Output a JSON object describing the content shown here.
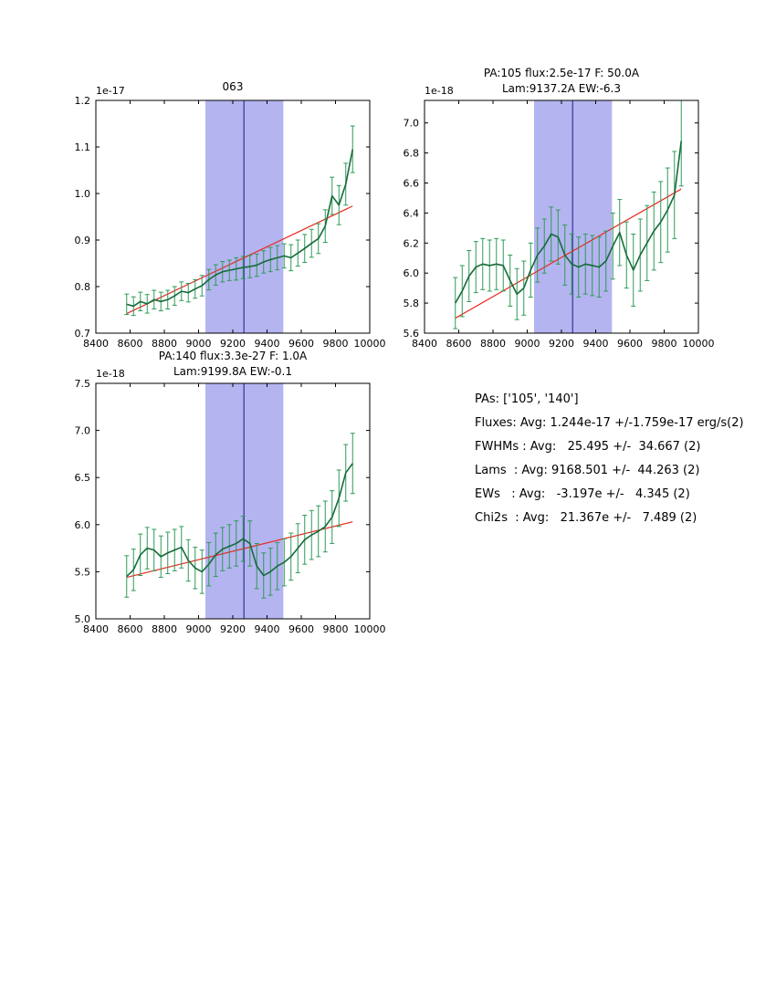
{
  "colors": {
    "series": "#156b38",
    "error": "#2e9b57",
    "fit": "#e8291f",
    "band": "#b4b4f0",
    "center": "#1a1a8c",
    "axis": "#000000",
    "background": "#ffffff"
  },
  "stats": {
    "lines": [
      "PAs: ['105', '140']",
      "Fluxes: Avg: 1.244e-17 +/-1.759e-17 erg/s(2)",
      "FWHMs : Avg:   25.495 +/-  34.667 (2)",
      "Lams  : Avg: 9168.501 +/-  44.263 (2)",
      "EWs   : Avg:   -3.197e +/-   4.345 (2)",
      "Chi2s  : Avg:   21.367e +/-   7.489 (2)"
    ]
  },
  "chart_data": [
    {
      "type": "line",
      "title_lines": [
        "063"
      ],
      "offset_label": "1e-17",
      "xlim": [
        8400,
        10000
      ],
      "ylim": [
        0.7,
        1.2
      ],
      "xticks": [
        8400,
        8600,
        8800,
        9000,
        9200,
        9400,
        9600,
        9800,
        10000
      ],
      "xtick_labels": [
        "8400",
        "8600",
        "8800",
        "9000",
        "9200",
        "9400",
        "9600",
        "9800",
        "10000"
      ],
      "yticks": [
        0.7,
        0.8,
        0.9,
        1.0,
        1.1,
        1.2
      ],
      "ytick_labels": [
        "0.7",
        "0.8",
        "0.9",
        "1.0",
        "1.1",
        "1.2"
      ],
      "band": [
        9040,
        9495
      ],
      "center_line": 9265,
      "x": [
        8580,
        8620,
        8660,
        8700,
        8740,
        8780,
        8820,
        8860,
        8900,
        8940,
        8980,
        9020,
        9060,
        9100,
        9140,
        9180,
        9220,
        9260,
        9300,
        9340,
        9380,
        9420,
        9460,
        9500,
        9540,
        9580,
        9620,
        9660,
        9700,
        9740,
        9780,
        9820,
        9860,
        9900
      ],
      "series": [
        {
          "name": "spectrum",
          "y": [
            0.762,
            0.758,
            0.768,
            0.763,
            0.772,
            0.768,
            0.772,
            0.78,
            0.79,
            0.787,
            0.795,
            0.802,
            0.815,
            0.825,
            0.832,
            0.835,
            0.838,
            0.841,
            0.843,
            0.846,
            0.853,
            0.858,
            0.862,
            0.866,
            0.862,
            0.872,
            0.882,
            0.893,
            0.903,
            0.93,
            0.995,
            0.975,
            1.02,
            1.095
          ],
          "yerr": [
            0.022,
            0.02,
            0.02,
            0.02,
            0.02,
            0.02,
            0.02,
            0.02,
            0.02,
            0.02,
            0.02,
            0.022,
            0.022,
            0.022,
            0.022,
            0.022,
            0.024,
            0.024,
            0.024,
            0.024,
            0.024,
            0.026,
            0.026,
            0.026,
            0.028,
            0.028,
            0.03,
            0.03,
            0.032,
            0.035,
            0.04,
            0.042,
            0.045,
            0.05
          ]
        },
        {
          "name": "linear-fit",
          "x": [
            8580,
            9900
          ],
          "y": [
            0.742,
            0.973
          ]
        }
      ]
    },
    {
      "type": "line",
      "title_lines": [
        "PA:105 flux:2.5e-17 F: 50.0A",
        "Lam:9137.2A EW:-6.3"
      ],
      "offset_label": "1e-18",
      "xlim": [
        8400,
        10000
      ],
      "ylim": [
        5.6,
        7.15
      ],
      "xticks": [
        8400,
        8600,
        8800,
        9000,
        9200,
        9400,
        9600,
        9800,
        10000
      ],
      "xtick_labels": [
        "8400",
        "8600",
        "8800",
        "9000",
        "9200",
        "9400",
        "9600",
        "9800",
        "10000"
      ],
      "yticks": [
        5.6,
        5.8,
        6.0,
        6.2,
        6.4,
        6.6,
        6.8,
        7.0
      ],
      "ytick_labels": [
        "5.6",
        "5.8",
        "6.0",
        "6.2",
        "6.4",
        "6.6",
        "6.8",
        "7.0"
      ],
      "band": [
        9040,
        9495
      ],
      "center_line": 9265,
      "x": [
        8580,
        8620,
        8660,
        8700,
        8740,
        8780,
        8820,
        8860,
        8900,
        8940,
        8980,
        9020,
        9060,
        9100,
        9140,
        9180,
        9220,
        9260,
        9300,
        9340,
        9380,
        9420,
        9460,
        9500,
        9540,
        9580,
        9620,
        9660,
        9700,
        9740,
        9780,
        9820,
        9860,
        9900
      ],
      "series": [
        {
          "name": "spectrum",
          "y": [
            5.8,
            5.88,
            5.98,
            6.04,
            6.06,
            6.05,
            6.06,
            6.05,
            5.95,
            5.86,
            5.9,
            6.02,
            6.12,
            6.18,
            6.26,
            6.24,
            6.12,
            6.06,
            6.04,
            6.06,
            6.05,
            6.04,
            6.08,
            6.18,
            6.27,
            6.12,
            6.02,
            6.12,
            6.2,
            6.28,
            6.34,
            6.42,
            6.52,
            6.88
          ],
          "yerr": [
            0.17,
            0.17,
            0.17,
            0.17,
            0.17,
            0.17,
            0.17,
            0.17,
            0.17,
            0.17,
            0.18,
            0.18,
            0.18,
            0.18,
            0.18,
            0.18,
            0.2,
            0.2,
            0.2,
            0.2,
            0.2,
            0.2,
            0.2,
            0.22,
            0.22,
            0.22,
            0.24,
            0.24,
            0.25,
            0.26,
            0.27,
            0.28,
            0.29,
            0.3
          ]
        },
        {
          "name": "linear-fit",
          "x": [
            8580,
            9900
          ],
          "y": [
            5.7,
            6.56
          ]
        }
      ]
    },
    {
      "type": "line",
      "title_lines": [
        "PA:140 flux:3.3e-27 F: 1.0A",
        "Lam:9199.8A EW:-0.1"
      ],
      "offset_label": "1e-18",
      "xlim": [
        8400,
        10000
      ],
      "ylim": [
        5.0,
        7.5
      ],
      "xticks": [
        8400,
        8600,
        8800,
        9000,
        9200,
        9400,
        9600,
        9800,
        10000
      ],
      "xtick_labels": [
        "8400",
        "8600",
        "8800",
        "9000",
        "9200",
        "9400",
        "9600",
        "9800",
        "10000"
      ],
      "yticks": [
        5.0,
        5.5,
        6.0,
        6.5,
        7.0,
        7.5
      ],
      "ytick_labels": [
        "5.0",
        "5.5",
        "6.0",
        "6.5",
        "7.0",
        "7.5"
      ],
      "band": [
        9040,
        9495
      ],
      "center_line": 9265,
      "x": [
        8580,
        8620,
        8660,
        8700,
        8740,
        8780,
        8820,
        8860,
        8900,
        8940,
        8980,
        9020,
        9060,
        9100,
        9140,
        9180,
        9220,
        9260,
        9300,
        9340,
        9380,
        9420,
        9460,
        9500,
        9540,
        9580,
        9620,
        9660,
        9700,
        9740,
        9780,
        9820,
        9860,
        9900
      ],
      "series": [
        {
          "name": "spectrum",
          "y": [
            5.45,
            5.52,
            5.68,
            5.75,
            5.73,
            5.66,
            5.7,
            5.73,
            5.76,
            5.62,
            5.54,
            5.5,
            5.58,
            5.68,
            5.74,
            5.77,
            5.8,
            5.85,
            5.8,
            5.56,
            5.46,
            5.5,
            5.56,
            5.6,
            5.66,
            5.75,
            5.84,
            5.89,
            5.93,
            5.98,
            6.08,
            6.28,
            6.55,
            6.65
          ],
          "yerr": [
            0.22,
            0.22,
            0.22,
            0.22,
            0.22,
            0.22,
            0.22,
            0.22,
            0.22,
            0.22,
            0.22,
            0.23,
            0.23,
            0.23,
            0.23,
            0.23,
            0.24,
            0.24,
            0.24,
            0.24,
            0.24,
            0.25,
            0.25,
            0.25,
            0.25,
            0.26,
            0.26,
            0.26,
            0.27,
            0.27,
            0.28,
            0.3,
            0.3,
            0.32
          ],
          "name2": "spectrum"
        },
        {
          "name": "linear-fit",
          "x": [
            8580,
            9900
          ],
          "y": [
            5.44,
            6.03
          ]
        }
      ]
    }
  ]
}
